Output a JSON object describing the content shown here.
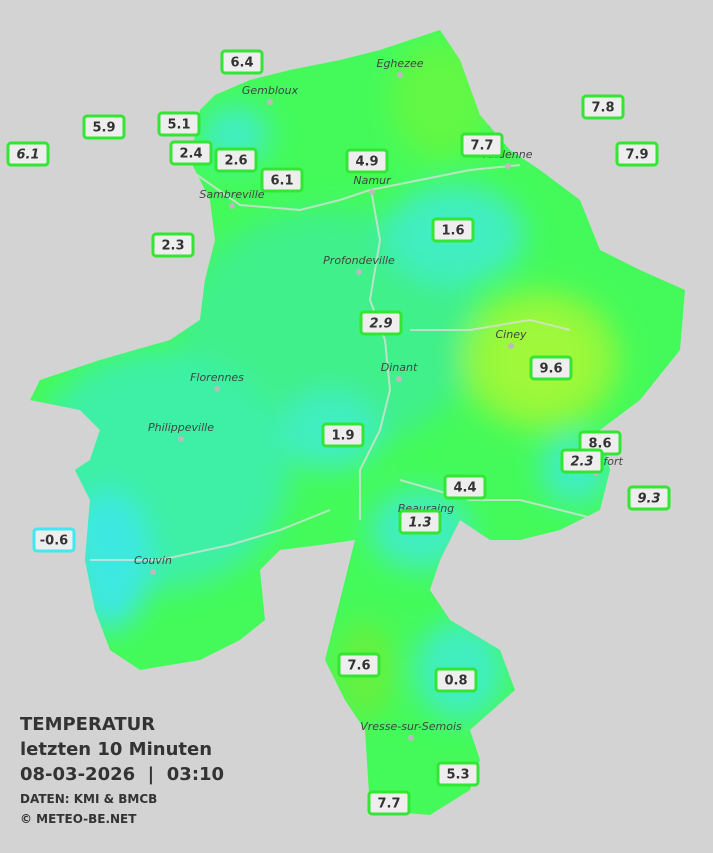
{
  "title": {
    "heading": "TEMPERATUR",
    "period": "letzten 10 Minuten",
    "timestamp": "08-03-2026  |  03:10",
    "source": "DATEN: KMI & BMCB",
    "credit": "© METEO-BE.NET"
  },
  "cities": [
    "Eghezee",
    "Gembloux",
    "Andenne",
    "Namur",
    "Sambreville",
    "Profondeville",
    "Ciney",
    "Dinant",
    "Florennes",
    "Philippeville",
    "Rochefort",
    "Beauraing",
    "Couvin",
    "Vresse-sur-Semois"
  ],
  "stations": [
    6.4,
    5.9,
    6.1,
    5.1,
    2.4,
    2.6,
    6.1,
    4.9,
    7.7,
    7.8,
    7.9,
    2.3,
    1.6,
    2.9,
    9.6,
    1.9,
    8.6,
    2.3,
    4.4,
    9.3,
    1.3,
    -0.6,
    7.6,
    0.8,
    5.3,
    7.7
  ]
}
